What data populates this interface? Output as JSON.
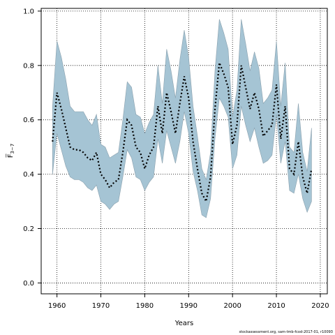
{
  "chart_data": {
    "type": "area",
    "xlabel": "Years",
    "ylabel": "F̅",
    "ylabel_sub": "3−7",
    "xlim": [
      1956.4,
      2021.6
    ],
    "ylim": [
      -0.04,
      1.01
    ],
    "x_ticks": [
      1960,
      1970,
      1980,
      1990,
      2000,
      2010,
      2020
    ],
    "y_ticks": [
      "0.0",
      "0.2",
      "0.4",
      "0.6",
      "0.8",
      "1.0"
    ],
    "grid": true,
    "credit": "stockassessment.org, sam-tmb-fcod-2017-01, r10093",
    "colors": {
      "band": "#a5c4d4",
      "band_stroke": "#8aa0ad",
      "line": "#000000"
    },
    "series": [
      {
        "type": "band",
        "x": [
          1959,
          1960,
          1961,
          1962,
          1963,
          1964,
          1965,
          1966,
          1967,
          1968,
          1969,
          1970,
          1971,
          1972,
          1973,
          1974,
          1975,
          1976,
          1977,
          1978,
          1979,
          1980,
          1981,
          1982,
          1983,
          1984,
          1985,
          1986,
          1987,
          1988,
          1989,
          1990,
          1991,
          1992,
          1993,
          1994,
          1995,
          1996,
          1997,
          1998,
          1999,
          2000,
          2001,
          2002,
          2003,
          2004,
          2005,
          2006,
          2007,
          2008,
          2009,
          2010,
          2011,
          2012,
          2013,
          2014,
          2015,
          2016,
          2017,
          2018
        ],
        "lower": [
          0.4,
          0.55,
          0.49,
          0.43,
          0.39,
          0.38,
          0.38,
          0.37,
          0.35,
          0.34,
          0.36,
          0.3,
          0.29,
          0.27,
          0.29,
          0.3,
          0.39,
          0.49,
          0.46,
          0.39,
          0.38,
          0.34,
          0.37,
          0.39,
          0.53,
          0.44,
          0.56,
          0.5,
          0.44,
          0.52,
          0.63,
          0.55,
          0.41,
          0.34,
          0.25,
          0.24,
          0.31,
          0.53,
          0.68,
          0.65,
          0.61,
          0.42,
          0.47,
          0.65,
          0.58,
          0.52,
          0.57,
          0.5,
          0.44,
          0.45,
          0.47,
          0.62,
          0.44,
          0.52,
          0.34,
          0.33,
          0.4,
          0.31,
          0.26,
          0.3
        ],
        "upper": [
          0.65,
          0.89,
          0.83,
          0.75,
          0.65,
          0.63,
          0.63,
          0.63,
          0.6,
          0.58,
          0.62,
          0.51,
          0.5,
          0.46,
          0.47,
          0.48,
          0.6,
          0.74,
          0.72,
          0.62,
          0.61,
          0.55,
          0.59,
          0.62,
          0.8,
          0.66,
          0.86,
          0.78,
          0.68,
          0.82,
          0.93,
          0.83,
          0.65,
          0.54,
          0.42,
          0.38,
          0.48,
          0.78,
          0.97,
          0.92,
          0.86,
          0.61,
          0.71,
          0.97,
          0.88,
          0.78,
          0.85,
          0.79,
          0.66,
          0.68,
          0.71,
          0.89,
          0.65,
          0.81,
          0.5,
          0.48,
          0.66,
          0.48,
          0.41,
          0.57
        ]
      },
      {
        "type": "line",
        "x": [
          1959,
          1960,
          1961,
          1962,
          1963,
          1964,
          1965,
          1966,
          1967,
          1968,
          1969,
          1970,
          1971,
          1972,
          1973,
          1974,
          1975,
          1976,
          1977,
          1978,
          1979,
          1980,
          1981,
          1982,
          1983,
          1984,
          1985,
          1986,
          1987,
          1988,
          1989,
          1990,
          1991,
          1992,
          1993,
          1994,
          1995,
          1996,
          1997,
          1998,
          1999,
          2000,
          2001,
          2002,
          2003,
          2004,
          2005,
          2006,
          2007,
          2008,
          2009,
          2010,
          2011,
          2012,
          2013,
          2014,
          2015,
          2016,
          2017,
          2018
        ],
        "y": [
          0.52,
          0.7,
          0.64,
          0.57,
          0.5,
          0.49,
          0.49,
          0.48,
          0.46,
          0.45,
          0.48,
          0.4,
          0.38,
          0.35,
          0.37,
          0.38,
          0.48,
          0.6,
          0.58,
          0.5,
          0.48,
          0.42,
          0.47,
          0.5,
          0.65,
          0.55,
          0.7,
          0.63,
          0.55,
          0.66,
          0.76,
          0.68,
          0.52,
          0.42,
          0.33,
          0.3,
          0.39,
          0.64,
          0.81,
          0.77,
          0.72,
          0.51,
          0.58,
          0.8,
          0.72,
          0.64,
          0.7,
          0.64,
          0.54,
          0.56,
          0.58,
          0.73,
          0.53,
          0.65,
          0.42,
          0.4,
          0.52,
          0.39,
          0.33,
          0.42
        ]
      }
    ]
  }
}
